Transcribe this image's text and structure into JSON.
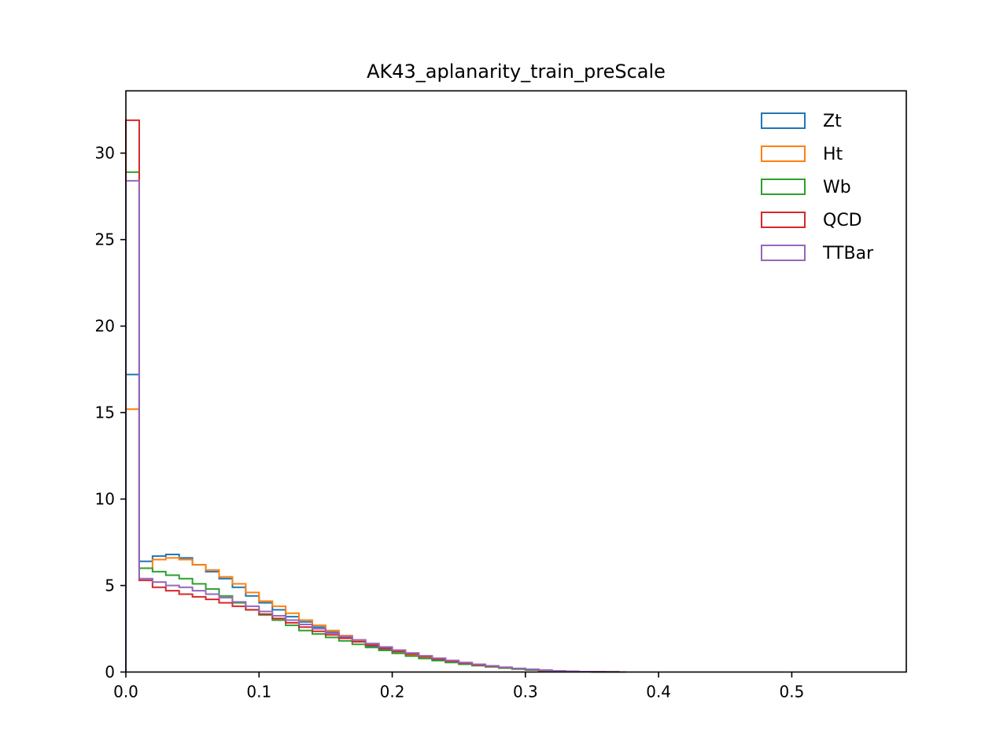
{
  "chart_data": {
    "type": "line",
    "title": "AK43_aplanarity_train_preScale",
    "xlabel": "",
    "ylabel": "",
    "xlim": [
      0.0,
      0.586
    ],
    "ylim": [
      0,
      33.6
    ],
    "xticks": [
      0.0,
      0.1,
      0.2,
      0.3,
      0.4,
      0.5
    ],
    "xtick_labels": [
      "0.0",
      "0.1",
      "0.2",
      "0.3",
      "0.4",
      "0.5"
    ],
    "yticks": [
      0,
      5,
      10,
      15,
      20,
      25,
      30
    ],
    "ytick_labels": [
      "0",
      "5",
      "10",
      "15",
      "20",
      "25",
      "30"
    ],
    "grid": false,
    "legend_position": "top-right",
    "bin_edges": [
      0.0,
      0.01,
      0.02,
      0.03,
      0.04,
      0.05,
      0.06,
      0.07,
      0.08,
      0.09,
      0.1,
      0.11,
      0.12,
      0.13,
      0.14,
      0.15,
      0.16,
      0.17,
      0.18,
      0.19,
      0.2,
      0.21,
      0.22,
      0.23,
      0.24,
      0.25,
      0.26,
      0.27,
      0.28,
      0.29,
      0.3,
      0.31,
      0.32,
      0.33,
      0.34,
      0.35,
      0.36,
      0.37,
      0.375
    ],
    "series": [
      {
        "name": "Zt",
        "color": "#1f77b4",
        "values": [
          17.2,
          6.4,
          6.7,
          6.8,
          6.6,
          6.2,
          5.8,
          5.4,
          4.9,
          4.4,
          4.0,
          3.6,
          3.2,
          2.9,
          2.6,
          2.3,
          2.0,
          1.75,
          1.5,
          1.3,
          1.12,
          0.97,
          0.83,
          0.7,
          0.58,
          0.48,
          0.39,
          0.31,
          0.24,
          0.18,
          0.13,
          0.09,
          0.06,
          0.04,
          0.02,
          0.01,
          0.005,
          0.002
        ]
      },
      {
        "name": "Ht",
        "color": "#ff7f0e",
        "values": [
          15.2,
          6.0,
          6.5,
          6.6,
          6.5,
          6.2,
          5.9,
          5.5,
          5.1,
          4.6,
          4.1,
          3.8,
          3.4,
          3.0,
          2.7,
          2.4,
          2.1,
          1.85,
          1.6,
          1.38,
          1.18,
          1.0,
          0.86,
          0.72,
          0.6,
          0.5,
          0.41,
          0.33,
          0.26,
          0.2,
          0.15,
          0.1,
          0.07,
          0.04,
          0.02,
          0.01,
          0.005,
          0.002
        ]
      },
      {
        "name": "Wb",
        "color": "#2ca02c",
        "values": [
          28.9,
          6.0,
          5.8,
          5.6,
          5.4,
          5.1,
          4.8,
          4.4,
          4.0,
          3.6,
          3.3,
          3.0,
          2.7,
          2.4,
          2.2,
          2.0,
          1.8,
          1.6,
          1.42,
          1.25,
          1.08,
          0.92,
          0.78,
          0.66,
          0.55,
          0.45,
          0.37,
          0.3,
          0.23,
          0.17,
          0.12,
          0.08,
          0.05,
          0.03,
          0.02,
          0.01,
          0.005,
          0.002
        ]
      },
      {
        "name": "QCD",
        "color": "#d62728",
        "values": [
          31.9,
          5.3,
          4.9,
          4.7,
          4.5,
          4.35,
          4.2,
          4.0,
          3.8,
          3.6,
          3.35,
          3.1,
          2.85,
          2.6,
          2.35,
          2.15,
          1.95,
          1.75,
          1.55,
          1.37,
          1.2,
          1.04,
          0.89,
          0.75,
          0.62,
          0.51,
          0.41,
          0.33,
          0.26,
          0.2,
          0.15,
          0.1,
          0.07,
          0.04,
          0.025,
          0.012,
          0.006,
          0.002
        ]
      },
      {
        "name": "TTBar",
        "color": "#9467bd",
        "values": [
          28.4,
          5.4,
          5.2,
          5.0,
          4.9,
          4.7,
          4.5,
          4.3,
          4.05,
          3.8,
          3.5,
          3.25,
          3.0,
          2.75,
          2.5,
          2.25,
          2.05,
          1.85,
          1.65,
          1.45,
          1.27,
          1.1,
          0.94,
          0.8,
          0.67,
          0.55,
          0.45,
          0.36,
          0.28,
          0.21,
          0.16,
          0.11,
          0.07,
          0.045,
          0.025,
          0.012,
          0.006,
          0.002
        ]
      }
    ]
  }
}
